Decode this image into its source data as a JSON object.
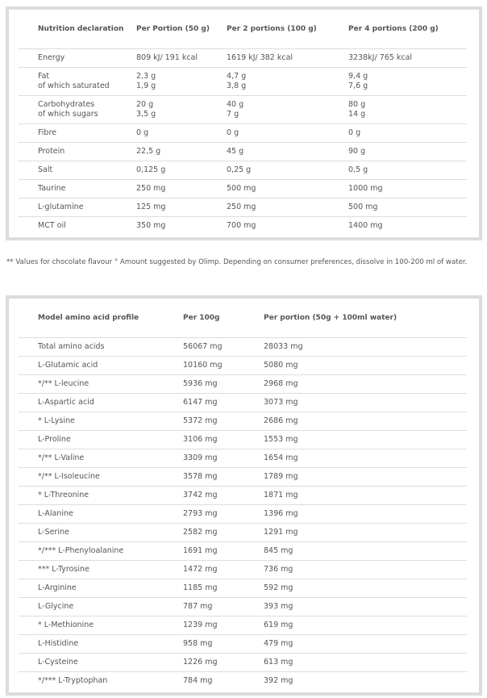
{
  "nutrition": {
    "headers": [
      "Nutrition declaration",
      "Per Portion (50 g)",
      "Per 2 portions (100 g)",
      "Per 4 portions (200 g)"
    ],
    "rows": [
      {
        "label": [
          "Energy"
        ],
        "v1": [
          "809 kJ/ 191 kcal"
        ],
        "v2": [
          "1619 kJ/ 382 kcal"
        ],
        "v3": [
          "3238kJ/ 765 kcal"
        ]
      },
      {
        "label": [
          "Fat",
          "of which saturated"
        ],
        "v1": [
          "2,3 g",
          "1,9 g"
        ],
        "v2": [
          "4,7 g",
          "3,8 g"
        ],
        "v3": [
          "9,4 g",
          "7,6 g"
        ]
      },
      {
        "label": [
          "Carbohydrates",
          "of which sugars"
        ],
        "v1": [
          "20 g",
          "3,5 g"
        ],
        "v2": [
          "40 g",
          "7 g"
        ],
        "v3": [
          "80 g",
          "14 g"
        ]
      },
      {
        "label": [
          "Fibre"
        ],
        "v1": [
          "0 g"
        ],
        "v2": [
          "0 g"
        ],
        "v3": [
          "0 g"
        ]
      },
      {
        "label": [
          "Protein"
        ],
        "v1": [
          "22,5 g"
        ],
        "v2": [
          "45 g"
        ],
        "v3": [
          "90 g"
        ]
      },
      {
        "label": [
          "Salt"
        ],
        "v1": [
          "0,125 g"
        ],
        "v2": [
          "0,25 g"
        ],
        "v3": [
          "0,5 g"
        ]
      },
      {
        "label": [
          "Taurine"
        ],
        "v1": [
          "250 mg"
        ],
        "v2": [
          "500 mg"
        ],
        "v3": [
          "1000 mg"
        ]
      },
      {
        "label": [
          "L-glutamine"
        ],
        "v1": [
          "125 mg"
        ],
        "v2": [
          "250 mg"
        ],
        "v3": [
          "500 mg"
        ]
      },
      {
        "label": [
          "MCT oil"
        ],
        "v1": [
          "350 mg"
        ],
        "v2": [
          "700 mg"
        ],
        "v3": [
          "1400 mg"
        ]
      }
    ]
  },
  "note": "** Values for chocolate flavour ° Amount suggested by Olimp. Depending on consumer preferences, dissolve in 100-200 ml of water.",
  "amino": {
    "headers": [
      "Model amino acid profile",
      "Per 100g",
      "Per portion (50g + 100ml water)"
    ],
    "rows": [
      [
        "Total amino acids",
        "56067 mg",
        "28033 mg"
      ],
      [
        "L-Glutamic acid",
        "10160 mg",
        "5080 mg"
      ],
      [
        "*/** L-leucine",
        "5936 mg",
        "2968 mg"
      ],
      [
        "L-Aspartic acid",
        "6147 mg",
        "3073 mg"
      ],
      [
        "* L-Lysine",
        "5372 mg",
        "2686 mg"
      ],
      [
        "L-Proline",
        "3106 mg",
        "1553 mg"
      ],
      [
        "*/** L-Valine",
        "3309 mg",
        "1654 mg"
      ],
      [
        "*/** L-Isoleucine",
        "3578 mg",
        "1789 mg"
      ],
      [
        "* L-Threonine",
        "3742 mg",
        "1871 mg"
      ],
      [
        "L-Alanine",
        "2793 mg",
        "1396 mg"
      ],
      [
        "L-Serine",
        "2582 mg",
        "1291 mg"
      ],
      [
        "*/*** L-Phenyloalanine",
        "1691 mg",
        "845 mg"
      ],
      [
        "*** L-Tyrosine",
        "1472 mg",
        "736 mg"
      ],
      [
        "L-Arginine",
        "1185 mg",
        "592 mg"
      ],
      [
        "L-Glycine",
        "787 mg",
        "393 mg"
      ],
      [
        "* L-Methionine",
        "1239 mg",
        "619 mg"
      ],
      [
        "L-Histidine",
        "958 mg",
        "479 mg"
      ],
      [
        "L-Cysteine",
        "1226 mg",
        "613 mg"
      ],
      [
        "*/*** L-Tryptophan",
        "784 mg",
        "392 mg"
      ]
    ]
  }
}
